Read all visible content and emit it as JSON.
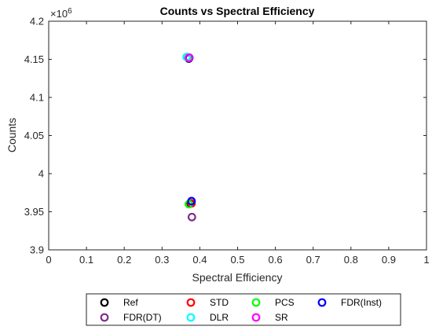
{
  "chart_data": {
    "type": "scatter",
    "title": "Counts vs Spectral Efficiency",
    "xlabel": "Spectral Efficiency",
    "ylabel": "Counts",
    "xlim": [
      0,
      1
    ],
    "ylim": [
      3900000,
      4200000
    ],
    "x_ticks": [
      "0",
      "0.1",
      "0.2",
      "0.3",
      "0.4",
      "0.5",
      "0.6",
      "0.7",
      "0.8",
      "0.9",
      "1"
    ],
    "y_ticks": [
      "3.9",
      "3.95",
      "4",
      "4.05",
      "4.1",
      "4.15",
      "4.2"
    ],
    "y_exponent_base": "×10",
    "y_exponent_power": "6",
    "grid": false,
    "legend_position": "bottom",
    "marker": "hollow-circle",
    "series": [
      {
        "name": "Ref",
        "color": "#000000",
        "x": [
          0.371,
          0.376
        ],
        "y": [
          4151000,
          3961000
        ]
      },
      {
        "name": "STD",
        "color": "#ff0000",
        "x": [
          0.372,
          0.378
        ],
        "y": [
          4152000,
          3961000
        ]
      },
      {
        "name": "PCS",
        "color": "#00ff00",
        "x": [
          0.366,
          0.371
        ],
        "y": [
          4153000,
          3960000
        ]
      },
      {
        "name": "FDR(Inst)",
        "color": "#0000ff",
        "x": [
          0.372,
          0.378
        ],
        "y": [
          4152000,
          3964000
        ]
      },
      {
        "name": "FDR(DT)",
        "color": "#7e2f8e",
        "x": [
          0.379
        ],
        "y": [
          3943000
        ]
      },
      {
        "name": "DLR",
        "color": "#00ffff",
        "x": [
          0.365
        ],
        "y": [
          4153000
        ]
      },
      {
        "name": "SR",
        "color": "#ff00ff",
        "x": [
          0.371
        ],
        "y": [
          4152000
        ]
      }
    ]
  }
}
